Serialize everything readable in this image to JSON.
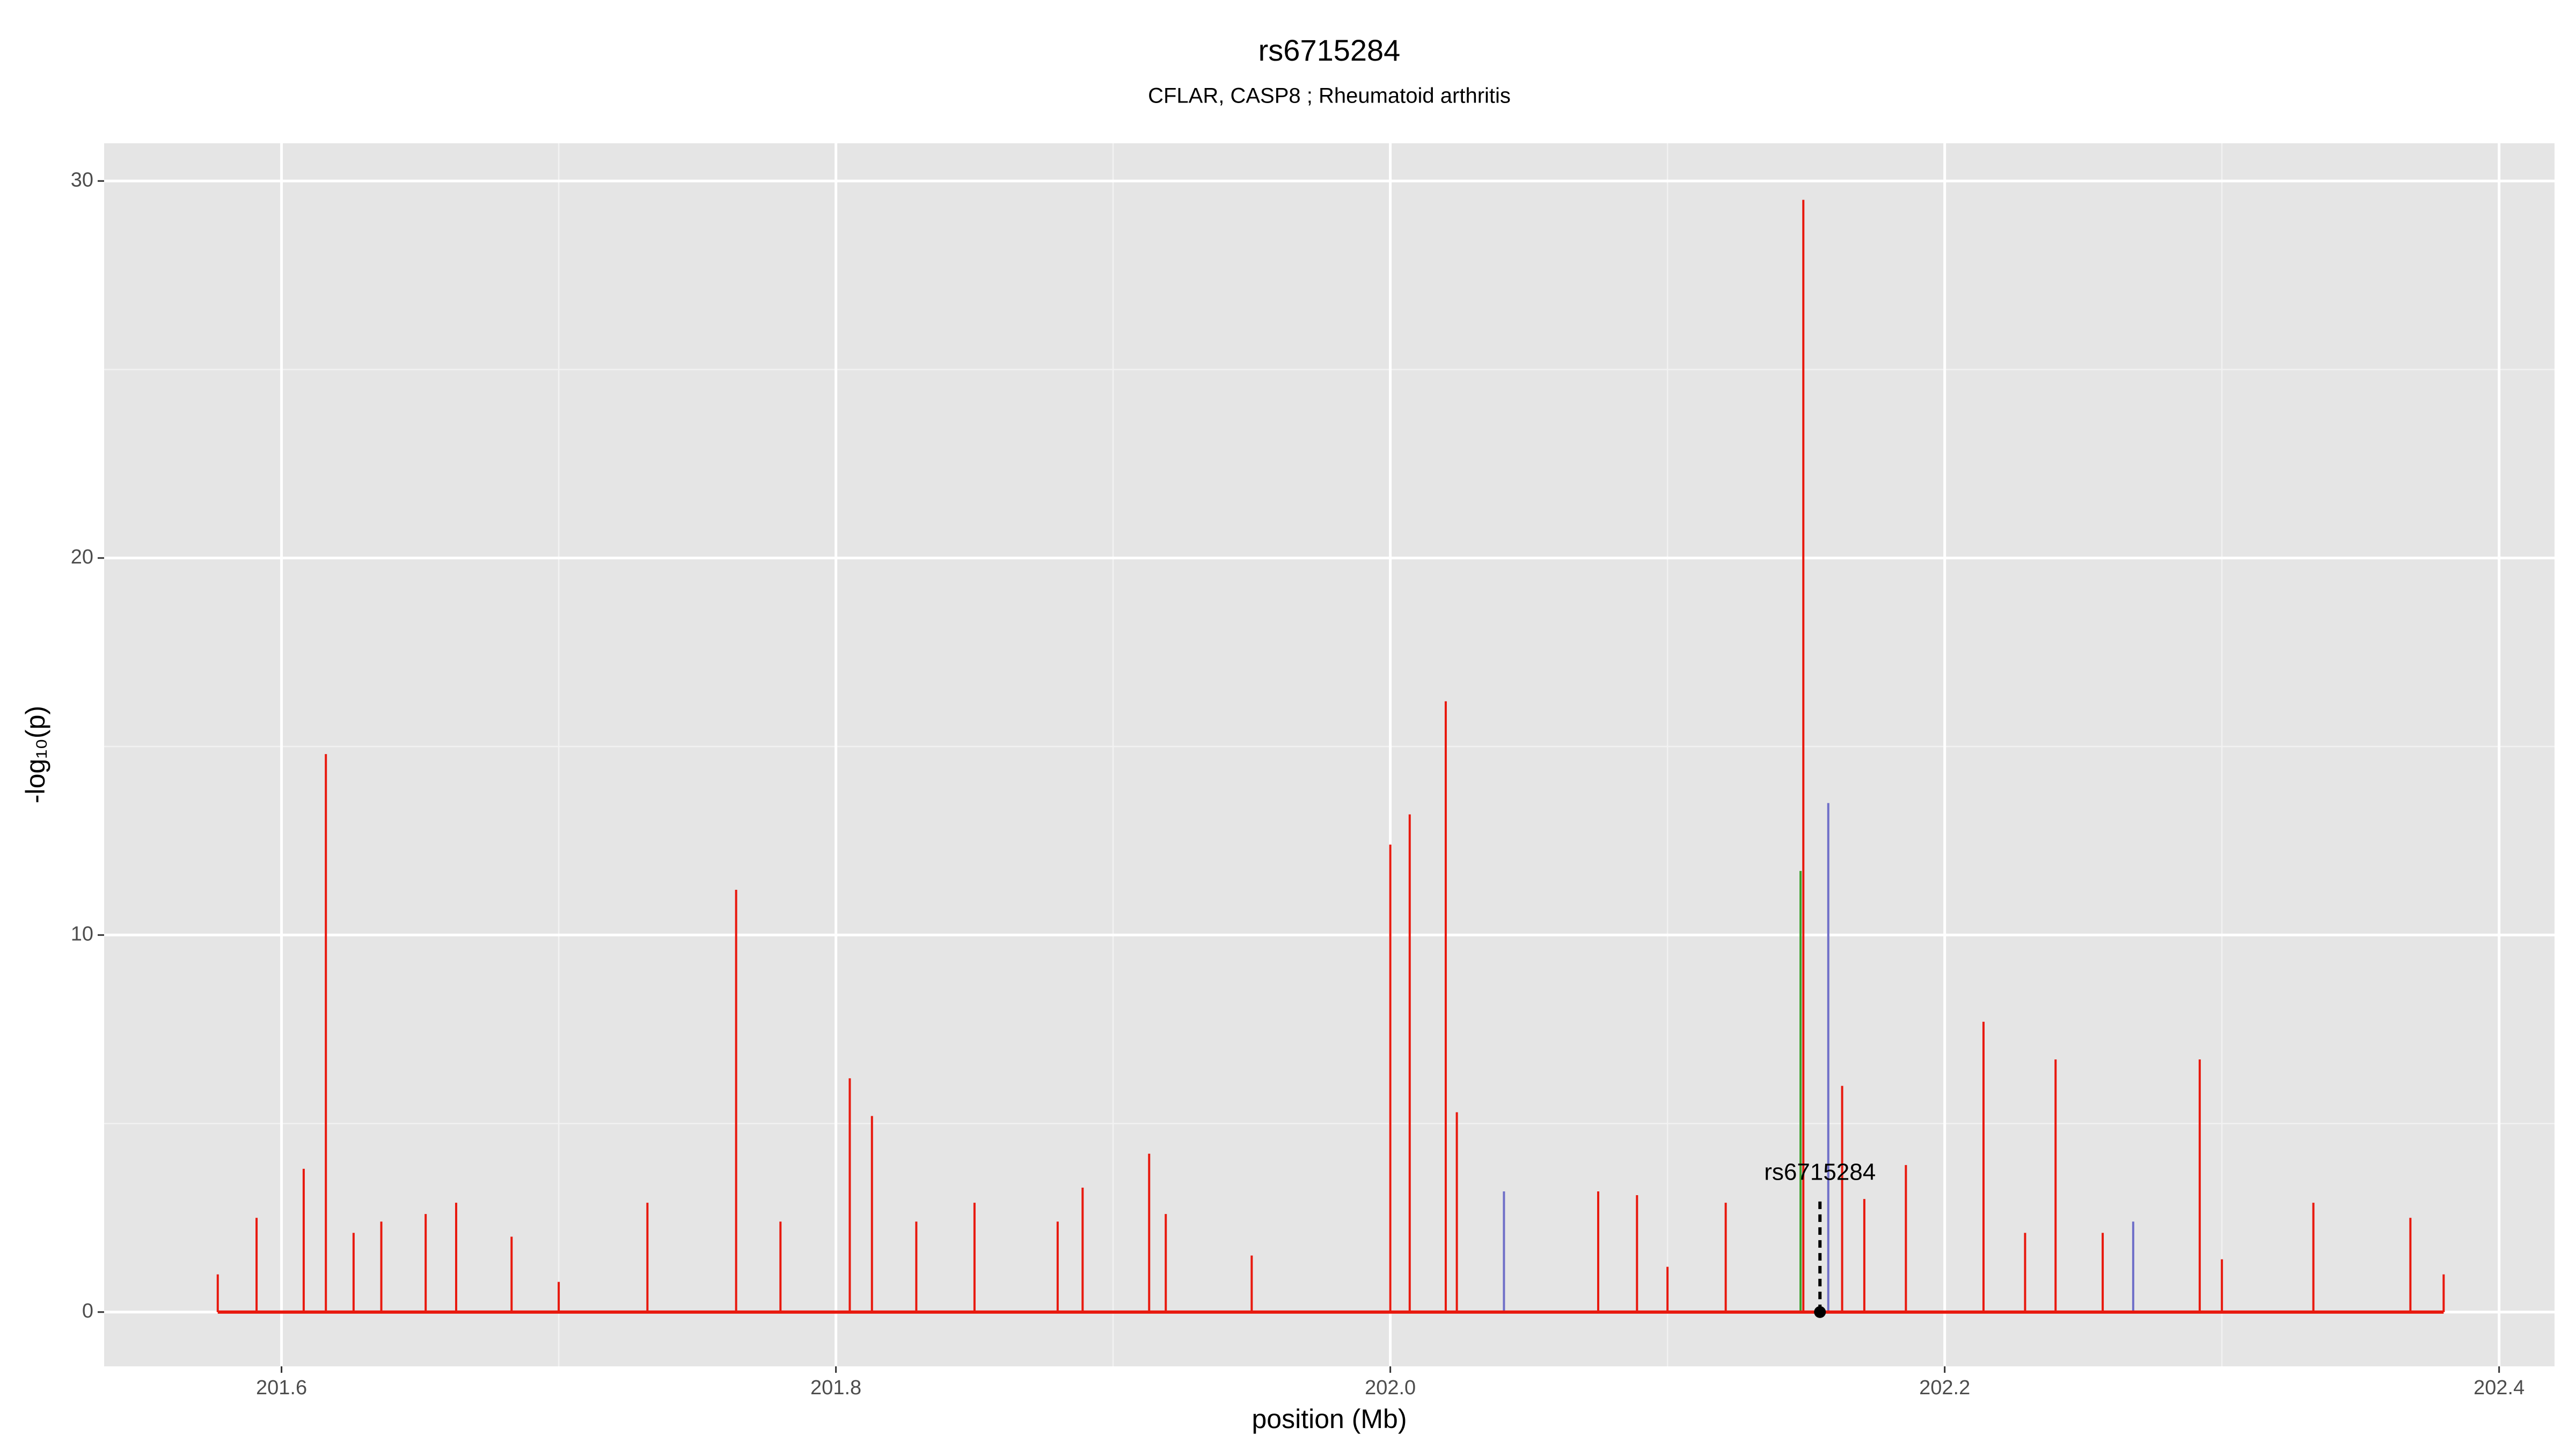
{
  "chart_data": {
    "type": "spike",
    "title": "rs6715284",
    "subtitle": "CFLAR, CASP8 ; Rheumatoid arthritis",
    "x_label": "position (Mb)",
    "y_label": "-log₁₀(p)",
    "xlim": [
      201.536,
      202.42
    ],
    "ylim": [
      -1.44,
      31.0
    ],
    "xticks": [
      201.6,
      201.8,
      {
        "value": 202,
        "label": "202.0"
      },
      202.2,
      202.4
    ],
    "yticks": [
      0,
      10,
      20,
      30
    ],
    "xminorticks": [
      201.7,
      201.9,
      202.1,
      202.3
    ],
    "yminorticks": [
      5,
      15,
      25
    ],
    "grid": true,
    "series": [
      {
        "name": "red",
        "color": "#e8190e",
        "x": [
          201.577,
          201.591,
          201.608,
          201.616,
          201.626,
          201.636,
          201.652,
          201.663,
          201.683,
          201.7,
          201.732,
          201.764,
          201.78,
          201.805,
          201.813,
          201.829,
          201.85,
          201.88,
          201.889,
          201.913,
          201.919,
          201.95,
          202.0,
          202.007,
          202.02,
          202.024,
          202.075,
          202.089,
          202.1,
          202.121,
          202.149,
          202.163,
          202.171,
          202.186,
          202.214,
          202.229,
          202.24,
          202.257,
          202.292,
          202.3,
          202.333,
          202.368,
          202.38
        ],
        "values": [
          1.0,
          2.5,
          3.8,
          14.8,
          2.1,
          2.4,
          2.6,
          2.9,
          2.0,
          0.8,
          2.9,
          11.2,
          2.4,
          6.2,
          5.2,
          2.4,
          2.9,
          2.4,
          3.3,
          4.2,
          2.6,
          1.5,
          12.4,
          13.2,
          16.2,
          5.3,
          3.2,
          3.1,
          1.2,
          2.9,
          29.5,
          6.0,
          3.0,
          3.9,
          7.7,
          2.1,
          6.7,
          2.1,
          6.7,
          1.4,
          2.9,
          2.5,
          1.0
        ]
      },
      {
        "name": "green",
        "color": "#3aa02c",
        "x": [
          202.148
        ],
        "values": [
          11.7
        ]
      },
      {
        "name": "blue",
        "color": "#6f6fc8",
        "x": [
          202.041,
          202.158,
          202.268
        ],
        "values": [
          3.2,
          13.5,
          2.4
        ]
      }
    ],
    "annotation": {
      "text": "rs6715284",
      "x": 202.155,
      "y": 0
    }
  }
}
